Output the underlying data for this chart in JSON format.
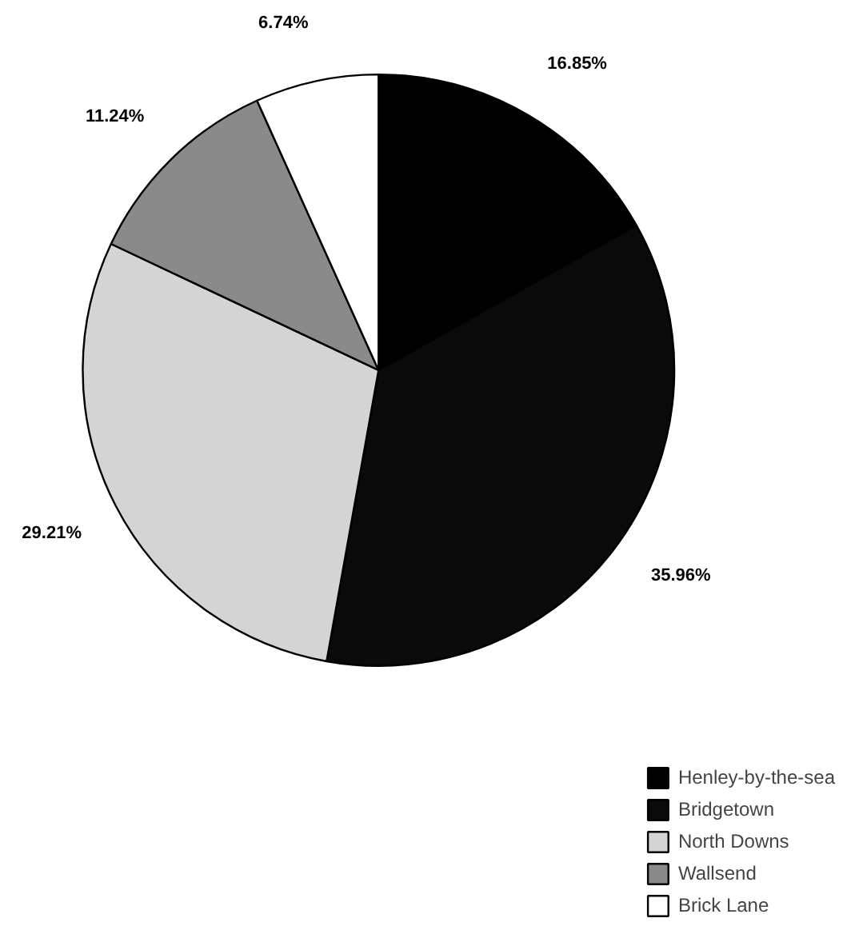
{
  "chart_data": {
    "type": "pie",
    "categories": [
      "Henley-by-the-sea",
      "Bridgetown",
      "North Downs",
      "Wallsend",
      "Brick Lane"
    ],
    "values": [
      16.85,
      35.96,
      29.21,
      11.24,
      6.74
    ],
    "colors": [
      "#000000",
      "#0a0a0a",
      "#d4d4d4",
      "#8a8a8a",
      "#ffffff"
    ],
    "value_labels": [
      "16.85%",
      "35.96%",
      "29.21%",
      "11.24%",
      "6.74%"
    ],
    "legend": "bottom right"
  }
}
